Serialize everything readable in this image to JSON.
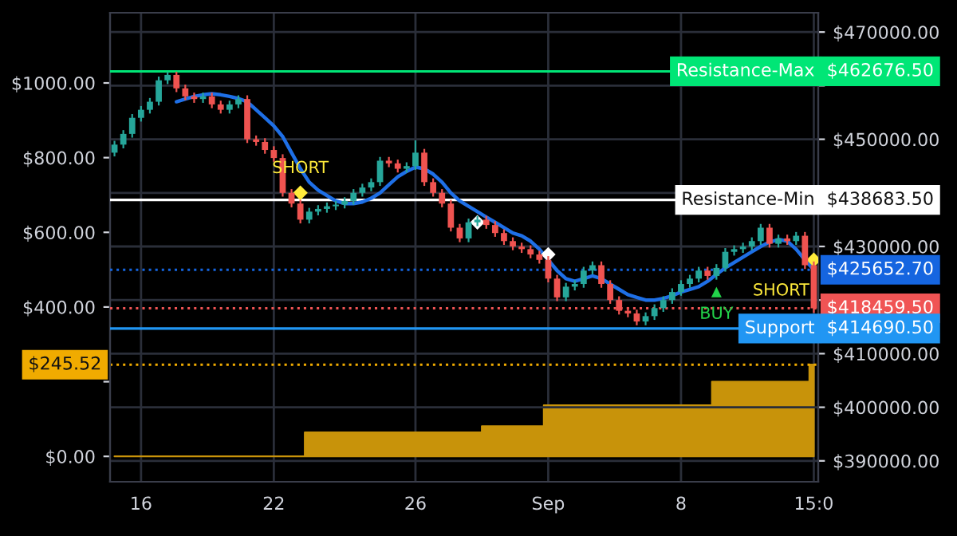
{
  "chart_data": {
    "type": "candlestick",
    "categories": [
      null,
      null,
      null,
      "16",
      null,
      null,
      null,
      null,
      null,
      null,
      null,
      null,
      null,
      null,
      null,
      null,
      null,
      null,
      "22",
      null,
      null,
      null,
      null,
      null,
      null,
      null,
      null,
      null,
      null,
      null,
      null,
      null,
      null,
      null,
      "26",
      null,
      null,
      null,
      null,
      null,
      null,
      null,
      null,
      null,
      null,
      null,
      null,
      null,
      null,
      "Sep",
      null,
      null,
      null,
      null,
      null,
      null,
      null,
      null,
      null,
      null,
      null,
      null,
      null,
      null,
      "8",
      null,
      null,
      null,
      null,
      null,
      null,
      null,
      null,
      null,
      null,
      null,
      null,
      null,
      null,
      "15:0"
    ],
    "series": [
      {
        "type": "area",
        "axis": "y",
        "color": "#c8930a",
        "values": [
          0,
          0,
          0,
          0,
          0,
          0,
          0,
          0,
          0,
          0,
          0,
          0,
          0,
          0,
          0,
          0,
          0,
          0,
          0,
          0,
          0,
          0,
          64,
          64,
          64,
          64,
          64,
          64,
          64,
          64,
          64,
          64,
          64,
          64,
          64,
          64,
          64,
          64,
          64,
          64,
          64,
          64,
          81,
          81,
          81,
          81,
          81,
          81,
          81,
          137,
          137,
          137,
          137,
          137,
          137,
          137,
          137,
          137,
          137,
          137,
          137,
          137,
          137,
          137,
          137,
          137,
          137,
          137,
          200,
          200,
          200,
          200,
          200,
          200,
          200,
          200,
          200,
          200,
          200,
          245.52
        ]
      },
      {
        "axis": "y2",
        "ohlc": [
          [
            447500,
            449700,
            446800,
            449000
          ],
          [
            449000,
            451700,
            448300,
            451000
          ],
          [
            451000,
            454700,
            450300,
            454000
          ],
          [
            454000,
            456200,
            453300,
            455500
          ],
          [
            455500,
            457700,
            454800,
            457000
          ],
          [
            457000,
            461700,
            456300,
            461000
          ],
          [
            461000,
            462600,
            460300,
            462000
          ],
          [
            462000,
            462600,
            458800,
            459500
          ],
          [
            459500,
            460200,
            457300,
            458000
          ],
          [
            458000,
            458700,
            456800,
            457500
          ],
          [
            457500,
            458700,
            456800,
            458000
          ],
          [
            458000,
            458700,
            455800,
            456500
          ],
          [
            456500,
            457200,
            454800,
            455500
          ],
          [
            455500,
            457200,
            454800,
            456500
          ],
          [
            456500,
            458200,
            455800,
            457500
          ],
          [
            457500,
            458200,
            449300,
            450000
          ],
          [
            450000,
            450700,
            448800,
            449500
          ],
          [
            449500,
            450200,
            447300,
            448000
          ],
          [
            448000,
            448700,
            445800,
            446500
          ],
          [
            446500,
            447200,
            439300,
            440000
          ],
          [
            440000,
            440700,
            437300,
            438000
          ],
          [
            438000,
            438700,
            434300,
            435000
          ],
          [
            435000,
            437200,
            434300,
            436500
          ],
          [
            436500,
            437700,
            435800,
            437000
          ],
          [
            437000,
            438200,
            436300,
            437500
          ],
          [
            437500,
            438500,
            436800,
            437800
          ],
          [
            437800,
            439200,
            437100,
            438500
          ],
          [
            438500,
            440700,
            437800,
            440000
          ],
          [
            440000,
            441700,
            439300,
            441000
          ],
          [
            441000,
            442700,
            440300,
            442000
          ],
          [
            442000,
            446700,
            441300,
            446000
          ],
          [
            446000,
            446700,
            444800,
            445500
          ],
          [
            445500,
            446200,
            443800,
            444500
          ],
          [
            444500,
            445700,
            443800,
            445000
          ],
          [
            445000,
            449800,
            444300,
            447500
          ],
          [
            447500,
            448200,
            441300,
            442000
          ],
          [
            442000,
            442700,
            439300,
            440000
          ],
          [
            440000,
            440700,
            437300,
            438000
          ],
          [
            438000,
            438700,
            432800,
            433500
          ],
          [
            433500,
            434200,
            430800,
            431500
          ],
          [
            431500,
            435200,
            430800,
            434500
          ],
          [
            434500,
            435700,
            433800,
            435000
          ],
          [
            435000,
            435700,
            433300,
            434000
          ],
          [
            434000,
            434700,
            431800,
            432500
          ],
          [
            432500,
            433200,
            430300,
            431000
          ],
          [
            431000,
            431700,
            429300,
            430000
          ],
          [
            430000,
            430700,
            428800,
            429500
          ],
          [
            429500,
            430200,
            427800,
            428500
          ],
          [
            428500,
            429200,
            426800,
            427500
          ],
          [
            427500,
            428200,
            423300,
            424000
          ],
          [
            424000,
            424700,
            419800,
            420500
          ],
          [
            420500,
            423200,
            419800,
            422500
          ],
          [
            422500,
            423700,
            421800,
            423000
          ],
          [
            423000,
            426200,
            422300,
            425500
          ],
          [
            425500,
            427200,
            424800,
            426500
          ],
          [
            426500,
            427200,
            422300,
            423000
          ],
          [
            423000,
            423700,
            419300,
            420000
          ],
          [
            420000,
            420700,
            417300,
            418000
          ],
          [
            418000,
            418700,
            416800,
            417500
          ],
          [
            417500,
            418200,
            415300,
            416000
          ],
          [
            416000,
            417700,
            415300,
            417000
          ],
          [
            417000,
            419200,
            416300,
            418500
          ],
          [
            418500,
            420700,
            417800,
            420000
          ],
          [
            420000,
            422200,
            419300,
            421500
          ],
          [
            421500,
            423700,
            420800,
            423000
          ],
          [
            423000,
            424700,
            422300,
            424000
          ],
          [
            424000,
            426200,
            423300,
            425500
          ],
          [
            425500,
            426200,
            423800,
            424500
          ],
          [
            424500,
            426700,
            423800,
            426000
          ],
          [
            426000,
            429700,
            425300,
            429000
          ],
          [
            429000,
            430200,
            428300,
            429500
          ],
          [
            429500,
            430700,
            428800,
            430000
          ],
          [
            430000,
            431700,
            429300,
            431000
          ],
          [
            431000,
            434200,
            430300,
            433500
          ],
          [
            433500,
            434200,
            429800,
            430500
          ],
          [
            430500,
            432200,
            429800,
            431500
          ],
          [
            431500,
            432200,
            430300,
            431000
          ],
          [
            431000,
            432700,
            430300,
            432000
          ],
          [
            432000,
            432700,
            425800,
            426500
          ],
          [
            426500,
            427200,
            417600,
            418459.5
          ]
        ],
        "colors": [
          "#26a69a",
          "#26a69a",
          "#26a69a",
          "#26a69a",
          "#26a69a",
          "#26a69a",
          "#26a69a",
          "#ef5350",
          "#ef5350",
          "#ef5350",
          "#26a69a",
          "#ef5350",
          "#ef5350",
          "#26a69a",
          "#26a69a",
          "#ef5350",
          "#ef5350",
          "#ef5350",
          "#ef5350",
          "#ef5350",
          "#ef5350",
          "#ef5350",
          "#26a69a",
          "#26a69a",
          "#26a69a",
          "#26a69a",
          "#26a69a",
          "#26a69a",
          "#26a69a",
          "#26a69a",
          "#26a69a",
          "#ef5350",
          "#ef5350",
          "#26a69a",
          "#26a69a",
          "#ef5350",
          "#ef5350",
          "#ef5350",
          "#ef5350",
          "#ef5350",
          "#26a69a",
          "#26a69a",
          "#ef5350",
          "#ef5350",
          "#ef5350",
          "#ef5350",
          "#ef5350",
          "#ef5350",
          "#ef5350",
          "#ef5350",
          "#ef5350",
          "#26a69a",
          "#26a69a",
          "#26a69a",
          "#26a69a",
          "#ef5350",
          "#ef5350",
          "#ef5350",
          "#ef5350",
          "#ef5350",
          "#26a69a",
          "#26a69a",
          "#26a69a",
          "#26a69a",
          "#26a69a",
          "#26a69a",
          "#26a69a",
          "#ef5350",
          "#26a69a",
          "#26a69a",
          "#26a69a",
          "#26a69a",
          "#26a69a",
          "#26a69a",
          "#ef5350",
          "#26a69a",
          "#ef5350",
          "#26a69a",
          "#ef5350",
          "#ef5350"
        ]
      },
      {
        "type": "line",
        "axis": "y2",
        "color": "#1e6fe6",
        "values": [
          null,
          null,
          null,
          null,
          null,
          null,
          null,
          457000,
          457500,
          458000,
          458300,
          458500,
          458300,
          458000,
          457600,
          457000,
          455500,
          454000,
          452500,
          450500,
          447500,
          444500,
          442000,
          440500,
          439500,
          438500,
          438000,
          438000,
          438300,
          439000,
          440000,
          441500,
          443000,
          444000,
          444800,
          444500,
          443500,
          442000,
          440000,
          438500,
          437500,
          436500,
          435500,
          434500,
          433500,
          432500,
          432000,
          431000,
          429500,
          427500,
          425500,
          424000,
          423500,
          424000,
          424500,
          424000,
          423000,
          422000,
          421000,
          420500,
          420000,
          420000,
          420300,
          420800,
          421500,
          422000,
          422500,
          423500,
          424800,
          426000,
          427000,
          428000,
          429000,
          430000,
          430800,
          431300,
          431000,
          429500,
          427500,
          425652.7
        ]
      },
      {
        "type": "scatter",
        "axis": "y2",
        "name": "SHORT",
        "color": "#ffeb3b",
        "marker": "diamond",
        "values": [
          null,
          null,
          null,
          null,
          null,
          null,
          null,
          null,
          null,
          null,
          null,
          null,
          null,
          null,
          null,
          null,
          null,
          null,
          null,
          null,
          null,
          440000,
          null,
          null,
          null,
          null,
          null,
          null,
          null,
          null,
          null,
          null,
          null,
          null,
          null,
          null,
          null,
          null,
          null,
          null,
          null,
          null,
          null,
          null,
          null,
          null,
          null,
          null,
          null,
          null,
          null,
          null,
          null,
          null,
          null,
          null,
          null,
          null,
          null,
          null,
          null,
          null,
          null,
          null,
          null,
          null,
          null,
          null,
          null,
          null,
          null,
          null,
          null,
          null,
          null,
          null,
          null,
          null,
          null,
          427500
        ]
      },
      {
        "type": "scatter",
        "axis": "y2",
        "name": "BUY",
        "color": "#22d34a",
        "marker": "triangle",
        "values": [
          null,
          null,
          null,
          null,
          null,
          null,
          null,
          null,
          null,
          null,
          null,
          null,
          null,
          null,
          null,
          null,
          null,
          null,
          null,
          null,
          null,
          null,
          null,
          null,
          null,
          null,
          null,
          null,
          null,
          null,
          null,
          null,
          null,
          null,
          null,
          null,
          null,
          null,
          null,
          null,
          null,
          null,
          null,
          null,
          null,
          null,
          null,
          null,
          null,
          null,
          null,
          null,
          null,
          null,
          null,
          null,
          null,
          null,
          null,
          null,
          null,
          null,
          null,
          null,
          null,
          null,
          null,
          null,
          421500,
          null,
          null,
          null,
          null,
          null,
          null,
          null,
          null,
          null,
          null,
          null
        ]
      },
      {
        "type": "scatter",
        "axis": "y2",
        "color": "#ffffff",
        "marker": "diamond",
        "values": [
          null,
          null,
          null,
          null,
          null,
          null,
          null,
          null,
          null,
          null,
          null,
          null,
          null,
          null,
          null,
          null,
          null,
          null,
          null,
          null,
          null,
          null,
          null,
          null,
          null,
          null,
          null,
          null,
          null,
          null,
          null,
          null,
          null,
          null,
          null,
          null,
          null,
          null,
          null,
          null,
          null,
          434500,
          null,
          null,
          null,
          null,
          null,
          null,
          null,
          428500,
          null,
          null,
          null,
          null,
          null,
          null,
          null,
          null,
          null,
          null,
          null,
          null,
          null,
          null,
          null,
          null,
          null,
          null,
          null,
          null,
          null,
          null,
          null,
          null,
          null,
          null,
          null,
          null,
          null,
          null
        ]
      }
    ],
    "ylim": [
      -68,
      1188
    ],
    "yticks": [
      {
        "value": 0,
        "label": "$0.00"
      },
      {
        "value": 200,
        "label": null
      },
      {
        "value": 400,
        "label": "$400.00"
      },
      {
        "value": 600,
        "label": "$600.00"
      },
      {
        "value": 800,
        "label": "$800.00"
      },
      {
        "value": 1000,
        "label": "$1000.00"
      }
    ],
    "y2lim": [
      386100,
      473600
    ],
    "y2ticks": [
      {
        "value": 390000,
        "label": "$390000.00"
      },
      {
        "value": 400000,
        "label": "$400000.00"
      },
      {
        "value": 410000,
        "label": "$410000.00"
      },
      {
        "value": 420000,
        "label": null
      },
      {
        "value": 430000,
        "label": "$430000.00"
      },
      {
        "value": 440000,
        "label": null
      },
      {
        "value": 450000,
        "label": "$450000.00"
      },
      {
        "value": 460000,
        "label": null
      },
      {
        "value": 470000,
        "label": "$470000.00"
      }
    ],
    "ref_lines": [
      {
        "axis": "y2",
        "value": 462676.5,
        "label": "Resistance-Max",
        "color": "#00e676",
        "line_style": "solid"
      },
      {
        "axis": "y2",
        "value": 438683.5,
        "label": "Resistance-Min",
        "color": "#ffffff",
        "line_style": "solid"
      },
      {
        "axis": "y2",
        "value": 414690.5,
        "label": "Support",
        "color": "#2196f3",
        "line_style": "solid"
      },
      {
        "axis": "y2",
        "value": 425652.7,
        "label": "$425652.70",
        "color": "#1565e0",
        "line_style": "dotted"
      },
      {
        "axis": "y2",
        "value": 418459.5,
        "label": "$418459.50",
        "color": "#f05454",
        "line_style": "dotted"
      },
      {
        "axis": "y",
        "value": 245.52,
        "label": "$245.52",
        "color": "#f0ab00",
        "line_style": "dotted"
      }
    ],
    "annotations": [
      "$462676.50",
      "$438683.50",
      "$414690.50"
    ],
    "grid": true
  }
}
